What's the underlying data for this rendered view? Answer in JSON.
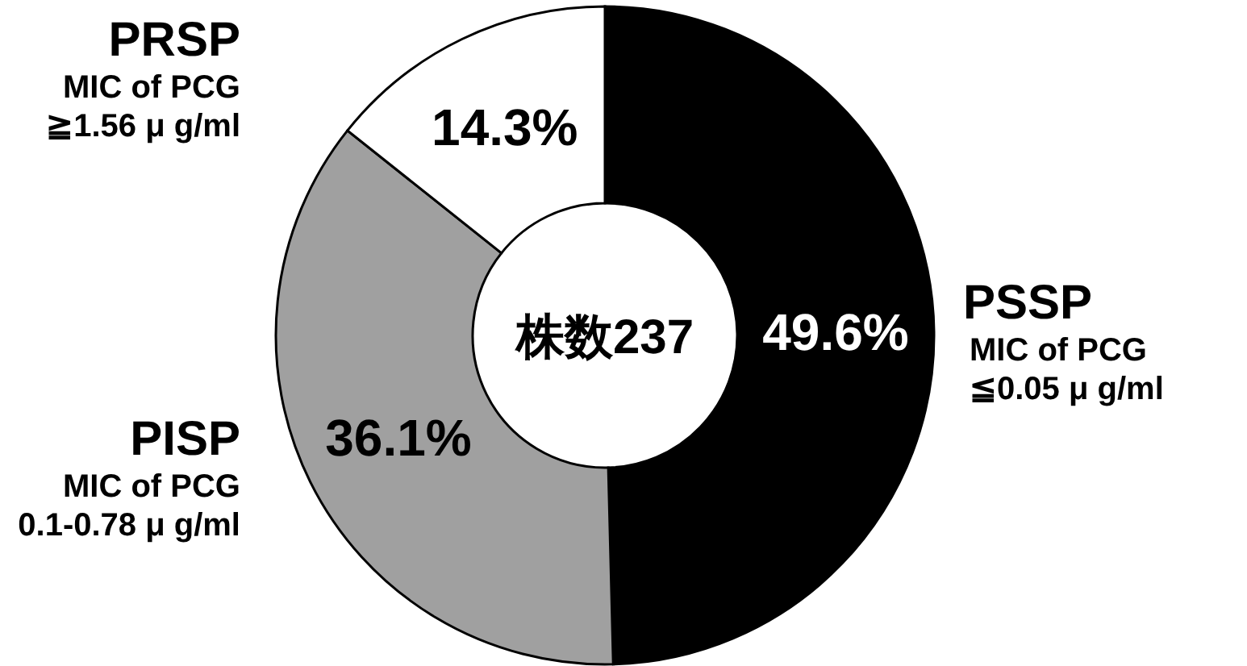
{
  "chart_data": {
    "type": "donut",
    "categories": [
      "PSSP",
      "PISP",
      "PRSP"
    ],
    "values": [
      49.6,
      36.1,
      14.3
    ],
    "colors": [
      "#000000",
      "#a0a0a0",
      "#ffffff"
    ],
    "value_labels": [
      "49.6%",
      "36.1%",
      "14.3%"
    ],
    "annotations": [
      "株数237",
      "MIC of PCG\n≦0.05 μ g/ml",
      "MIC of PCG\n0.1-0.78 μ g/ml",
      "MIC of PCG\n≧1.56 μ g/ml"
    ]
  }
}
